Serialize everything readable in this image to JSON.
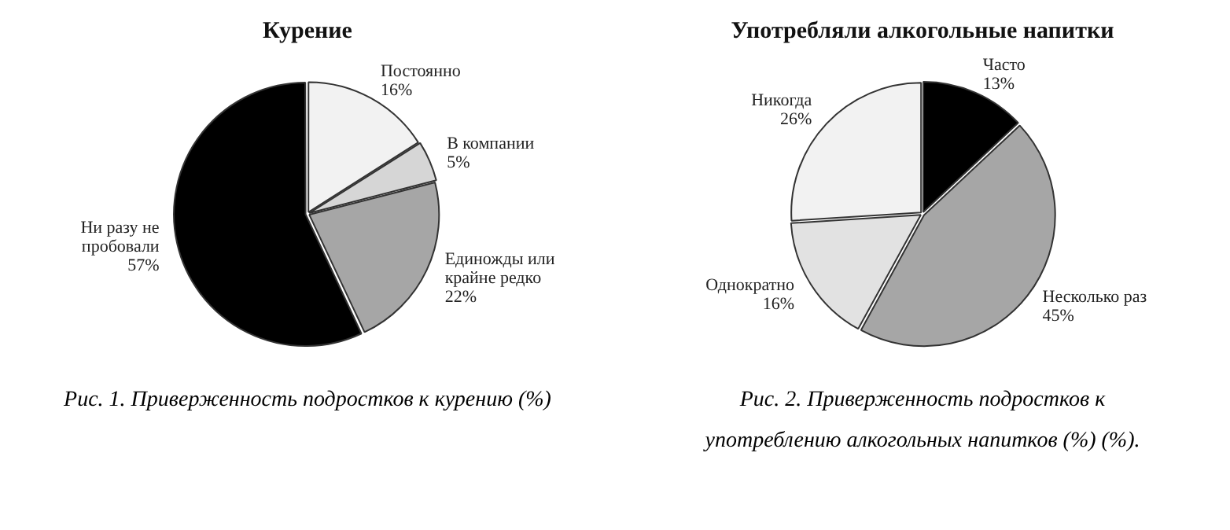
{
  "chart_data": [
    {
      "type": "pie",
      "title": "Курение",
      "categories": [
        "Постоянно",
        "В компании",
        "Единожды или крайне редко",
        "Ни разу не пробовали"
      ],
      "values": [
        16,
        5,
        22,
        57
      ],
      "value_labels": [
        "16%",
        "5%",
        "22%",
        "57%"
      ],
      "colors": [
        "#f2f2f2",
        "#d6d6d6",
        "#a6a6a6",
        "#000000"
      ],
      "legend": false,
      "annotations": [
        "Рис. 1. Приверженность подростков к курению (%)"
      ]
    },
    {
      "type": "pie",
      "title": "Употребляли алкогольные напитки",
      "categories": [
        "Часто",
        "Несколько раз",
        "Однократно",
        "Никогда"
      ],
      "values": [
        13,
        45,
        16,
        26
      ],
      "value_labels": [
        "13%",
        "45%",
        "16%",
        "26%"
      ],
      "colors": [
        "#000000",
        "#a6a6a6",
        "#e2e2e2",
        "#f2f2f2"
      ],
      "legend": false,
      "annotations": [
        "Рис. 2. Приверженность подростков к употреблению алкогольных напитков (%) (%)."
      ]
    }
  ]
}
